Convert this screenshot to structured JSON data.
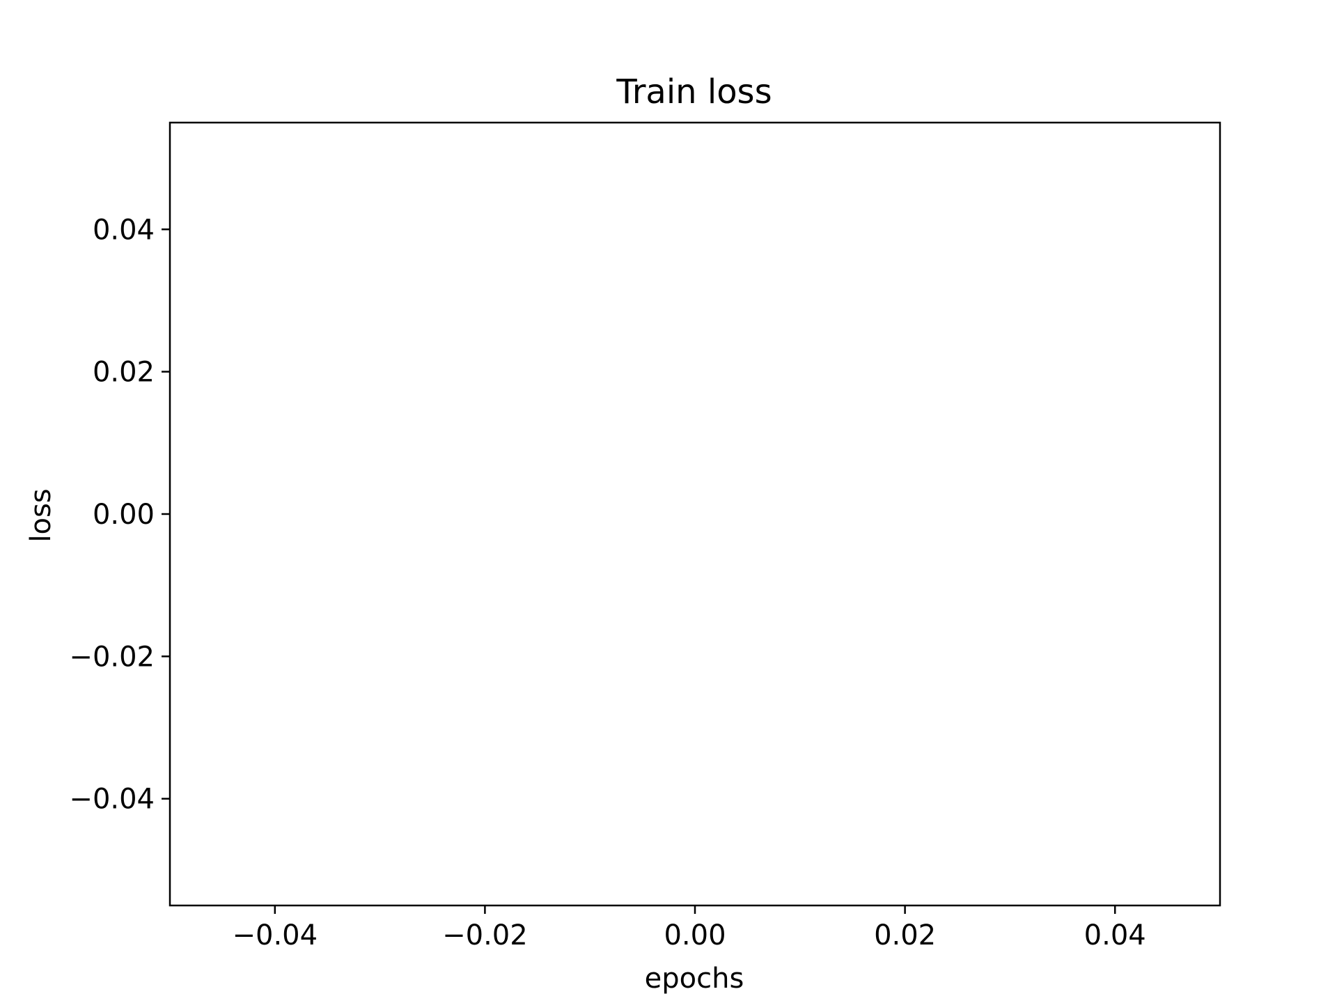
{
  "chart_data": {
    "type": "line",
    "title": "Train loss",
    "xlabel": "epochs",
    "ylabel": "loss",
    "xlim": [
      -0.05,
      0.05
    ],
    "ylim": [
      -0.055,
      0.055
    ],
    "x_ticks": [
      -0.04,
      -0.02,
      0.0,
      0.02,
      0.04
    ],
    "x_tick_labels": [
      "−0.04",
      "−0.02",
      "0.00",
      "0.02",
      "0.04"
    ],
    "y_ticks": [
      -0.04,
      -0.02,
      0.0,
      0.02,
      0.04
    ],
    "y_tick_labels": [
      "−0.04",
      "−0.02",
      "0.00",
      "0.02",
      "0.04"
    ],
    "grid": false,
    "legend": "none",
    "series": [
      {
        "x": [],
        "y": []
      }
    ],
    "colors": {
      "axis": "#000000",
      "background": "#ffffff"
    }
  }
}
